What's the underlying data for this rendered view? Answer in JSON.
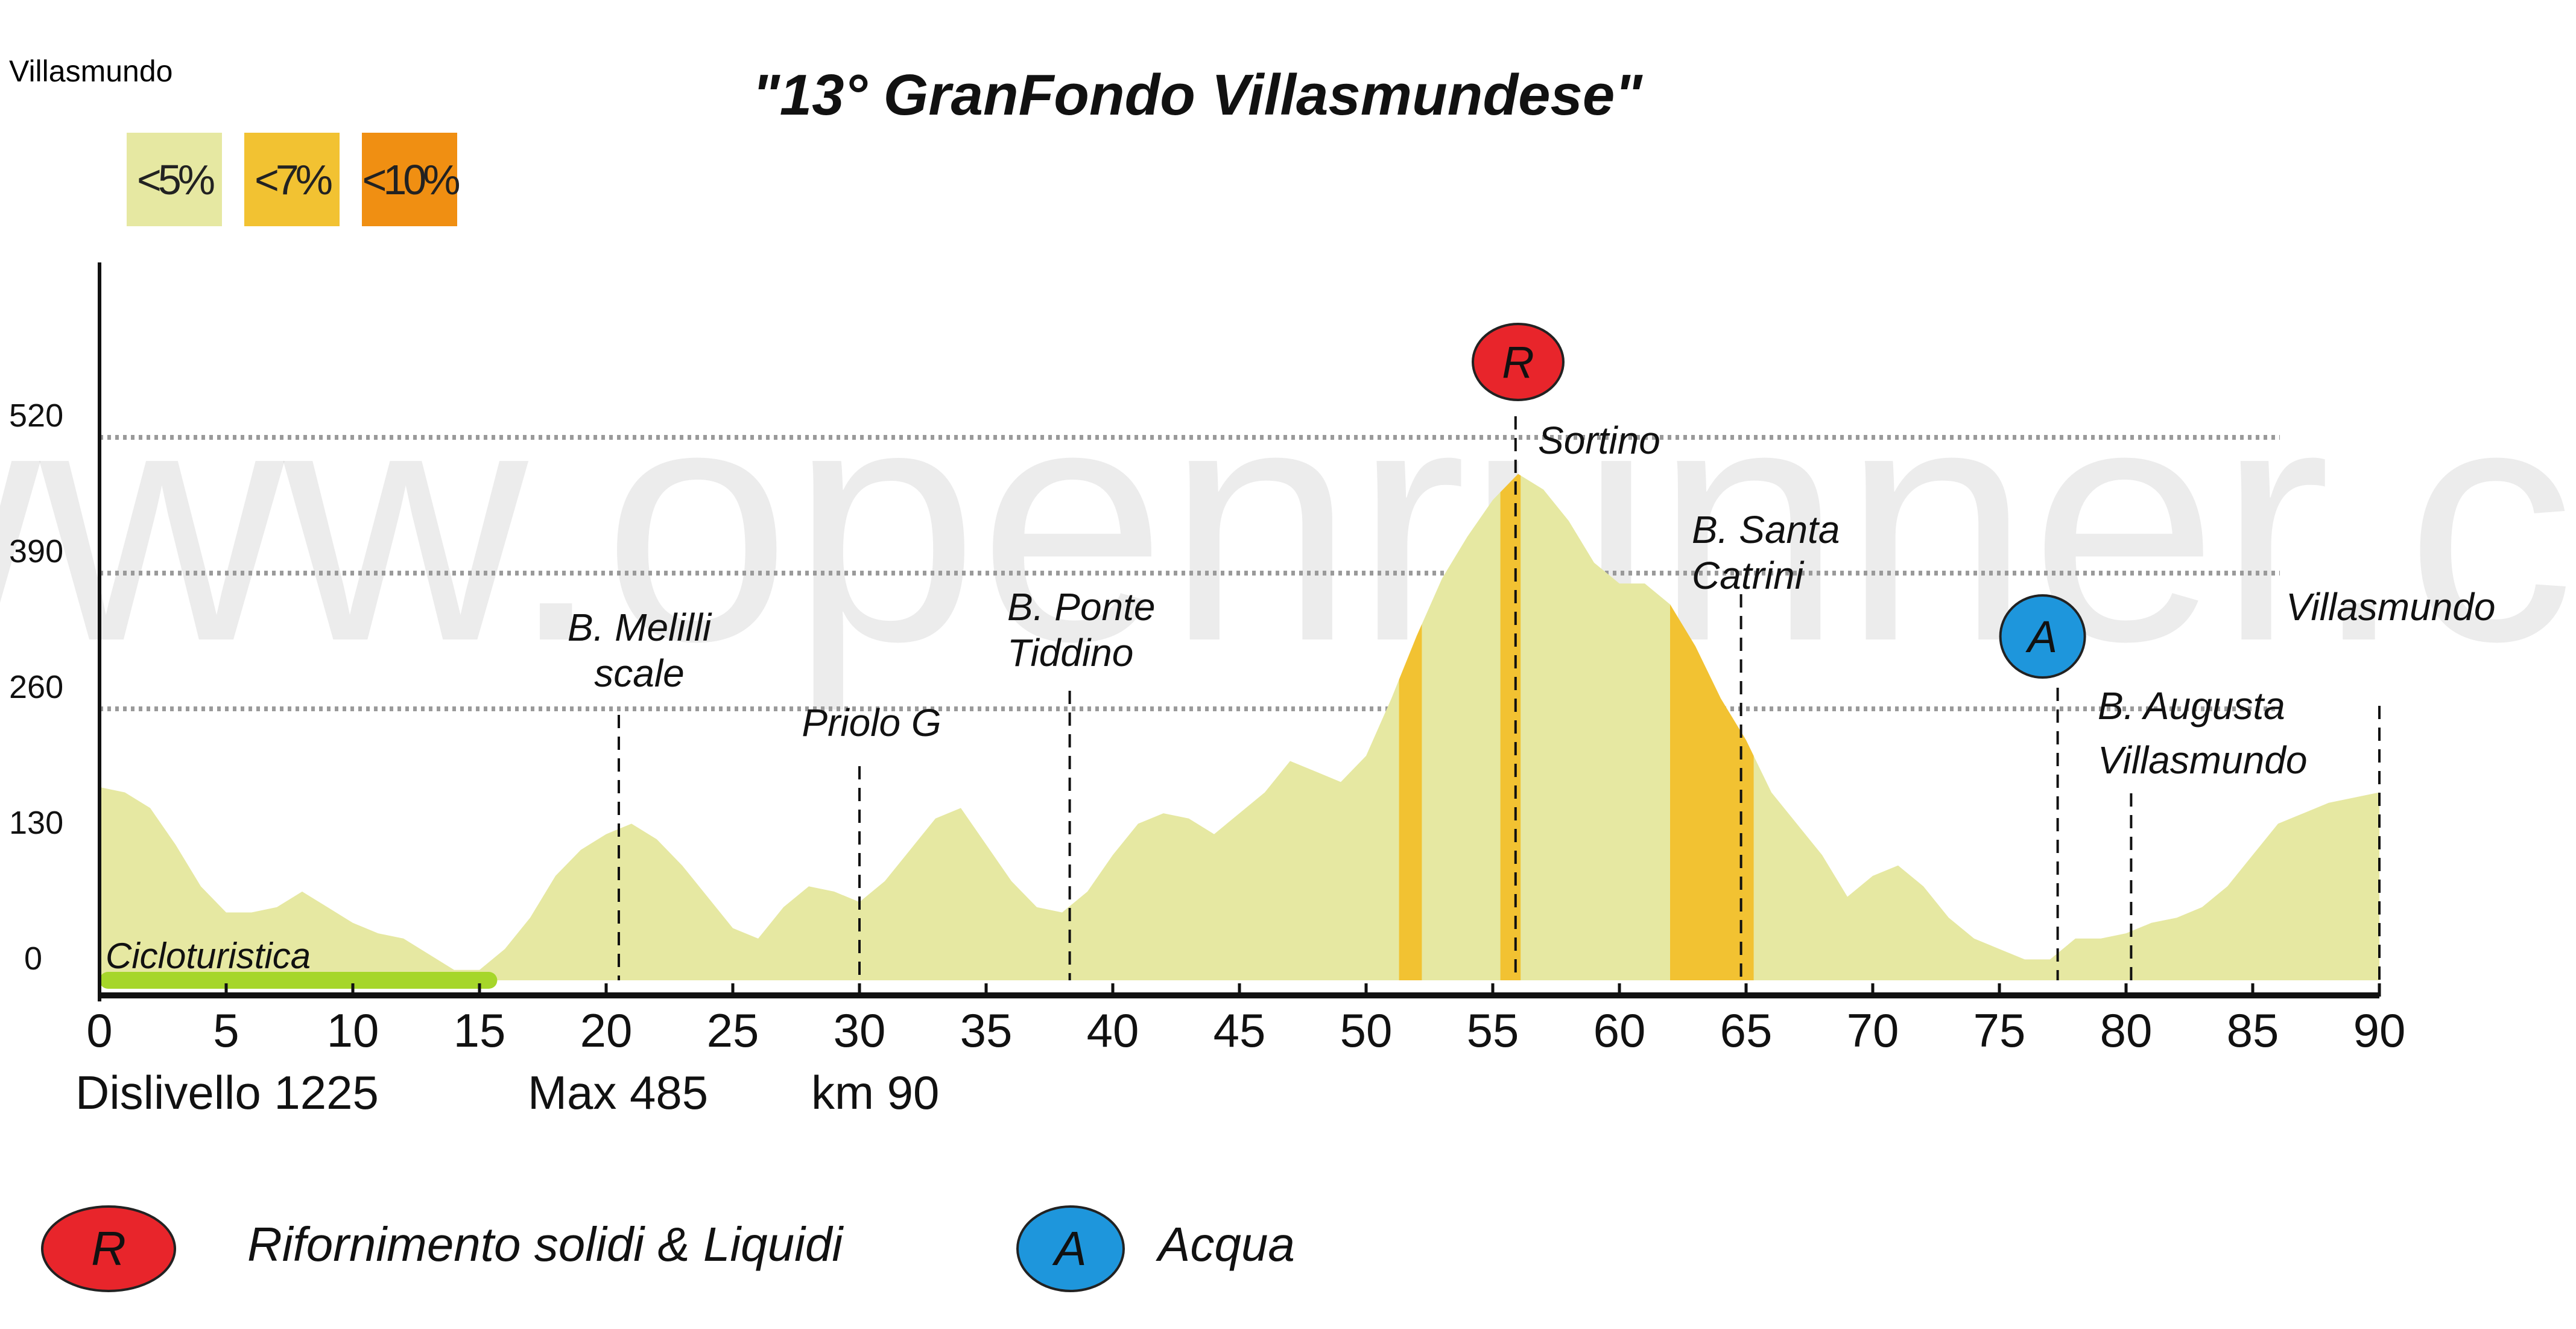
{
  "corner_label": "Villasmundo",
  "watermark": "© www.openrunner.com",
  "legend_slope": [
    {
      "label": "<5%",
      "color": "#e6e8a2"
    },
    {
      "label": "<7%",
      "color": "#f2c232"
    },
    {
      "label": "<10%",
      "color": "#f08f12"
    }
  ],
  "stats": {
    "dislivello": "Dislivello 1225",
    "max": "Max 485",
    "km": "km 90"
  },
  "legend_markers": [
    {
      "letter": "R",
      "text": "Rifornimento  solidi & Liquidi",
      "color": "#e8252b"
    },
    {
      "letter": "A",
      "text": "Acqua",
      "color": "#1e96dc"
    }
  ],
  "chart_data": {
    "type": "area",
    "title": "\"13° GranFondo Villasmundese\"",
    "xlabel": "",
    "ylabel": "",
    "xlim": [
      0,
      90
    ],
    "ylim": [
      0,
      600
    ],
    "x_ticks": [
      0,
      5,
      10,
      15,
      20,
      25,
      30,
      35,
      40,
      45,
      50,
      55,
      60,
      65,
      70,
      75,
      80,
      85,
      90
    ],
    "y_ticks": [
      0,
      130,
      260,
      390,
      520
    ],
    "grid": "dotted horizontal lines at 260, 390 and 520",
    "colors": {
      "profile": "#e6e8a2",
      "steep": "#f2c232",
      "route": "#a6d62a"
    },
    "x": [
      0,
      1,
      2,
      3,
      4,
      5,
      6,
      7,
      8,
      9,
      10,
      11,
      12,
      13,
      14,
      15,
      16,
      17,
      18,
      19,
      20,
      21,
      22,
      23,
      24,
      25,
      26,
      27,
      28,
      29,
      30,
      31,
      32,
      33,
      34,
      35,
      36,
      37,
      38,
      39,
      40,
      41,
      42,
      43,
      44,
      45,
      46,
      47,
      48,
      49,
      50,
      51,
      52,
      53,
      54,
      55,
      56,
      57,
      58,
      59,
      60,
      61,
      62,
      63,
      64,
      65,
      66,
      67,
      68,
      69,
      70,
      71,
      72,
      73,
      74,
      75,
      76,
      77,
      78,
      79,
      80,
      81,
      82,
      83,
      84,
      85,
      86,
      87,
      88,
      89,
      90
    ],
    "elevation": [
      185,
      180,
      165,
      130,
      90,
      65,
      65,
      70,
      85,
      70,
      55,
      45,
      40,
      25,
      10,
      10,
      30,
      60,
      100,
      125,
      140,
      150,
      135,
      110,
      80,
      50,
      40,
      70,
      90,
      85,
      75,
      95,
      125,
      155,
      165,
      130,
      95,
      70,
      65,
      85,
      120,
      150,
      160,
      155,
      140,
      160,
      180,
      210,
      200,
      190,
      215,
      270,
      330,
      385,
      425,
      460,
      485,
      470,
      440,
      400,
      380,
      380,
      360,
      320,
      270,
      230,
      180,
      150,
      120,
      80,
      100,
      110,
      90,
      60,
      40,
      30,
      20,
      20,
      40,
      40,
      45,
      55,
      60,
      70,
      90,
      120,
      150,
      160,
      170,
      175,
      180
    ],
    "steep_segments": [
      {
        "range": [
          51.3,
          52.2
        ],
        "grade": "<7%"
      },
      {
        "range": [
          55.3,
          56.1
        ],
        "grade": "<7%"
      },
      {
        "range": [
          62.0,
          65.3
        ],
        "grade": "<7%"
      }
    ],
    "route_segment": {
      "label": "Cicloturistica",
      "range": [
        0,
        15.7
      ]
    },
    "waypoints": [
      {
        "km": 20.5,
        "lines": [
          "B. Melilli",
          "scale"
        ]
      },
      {
        "km": 30.0,
        "lines": [
          "Priolo G"
        ]
      },
      {
        "km": 38.3,
        "lines": [
          "B. Ponte",
          "Tiddino"
        ]
      },
      {
        "km": 55.9,
        "lines": [
          "Sortino"
        ]
      },
      {
        "km": 64.8,
        "lines": [
          "B. Santa",
          "Catrini"
        ]
      },
      {
        "km": 77.3,
        "lines": [
          "B. Augusta"
        ]
      },
      {
        "km": 80.2,
        "lines": [
          "Villasmundo"
        ]
      },
      {
        "km": 90.0,
        "lines": [
          "Villasmundo"
        ]
      }
    ],
    "markers": [
      {
        "letter": "R",
        "km": 56.0,
        "color": "#e8252b"
      },
      {
        "letter": "A",
        "km": 77.3,
        "color": "#1e96dc"
      }
    ]
  }
}
